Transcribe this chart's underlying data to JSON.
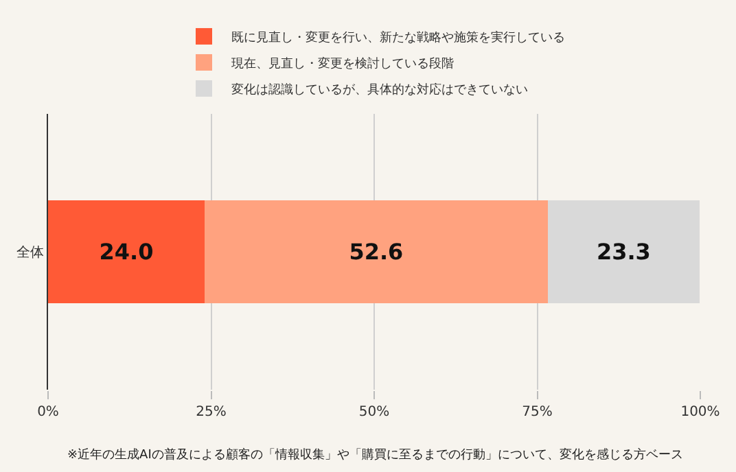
{
  "chart_data": {
    "type": "bar",
    "orientation": "horizontal",
    "stacked": true,
    "categories": [
      "全体"
    ],
    "series": [
      {
        "name": "既に見直し・変更を行い、新たな戦略や施策を実行している",
        "color": "#ff5a36",
        "values": [
          24.0
        ],
        "value_labels": [
          "24.0"
        ]
      },
      {
        "name": "現在、見直し・変更を検討している段階",
        "color": "#ffa27f",
        "values": [
          52.6
        ],
        "value_labels": [
          "52.6"
        ]
      },
      {
        "name": "変化は認識しているが、具体的な対応はできていない",
        "color": "#d9d9d9",
        "values": [
          23.3
        ],
        "value_labels": [
          "23.3"
        ]
      }
    ],
    "xlim": [
      0,
      100
    ],
    "xticks": [
      {
        "value": 0,
        "label": "0%"
      },
      {
        "value": 25,
        "label": "25%"
      },
      {
        "value": 50,
        "label": "50%"
      },
      {
        "value": 75,
        "label": "75%"
      },
      {
        "value": 100,
        "label": "100%"
      }
    ],
    "grid": "x",
    "legend": "top",
    "annotations": [
      "※近年の生成AIの普及による顧客の「情報収集」や「購買に至るまでの行動」について、変化を感じる方ベース"
    ]
  }
}
